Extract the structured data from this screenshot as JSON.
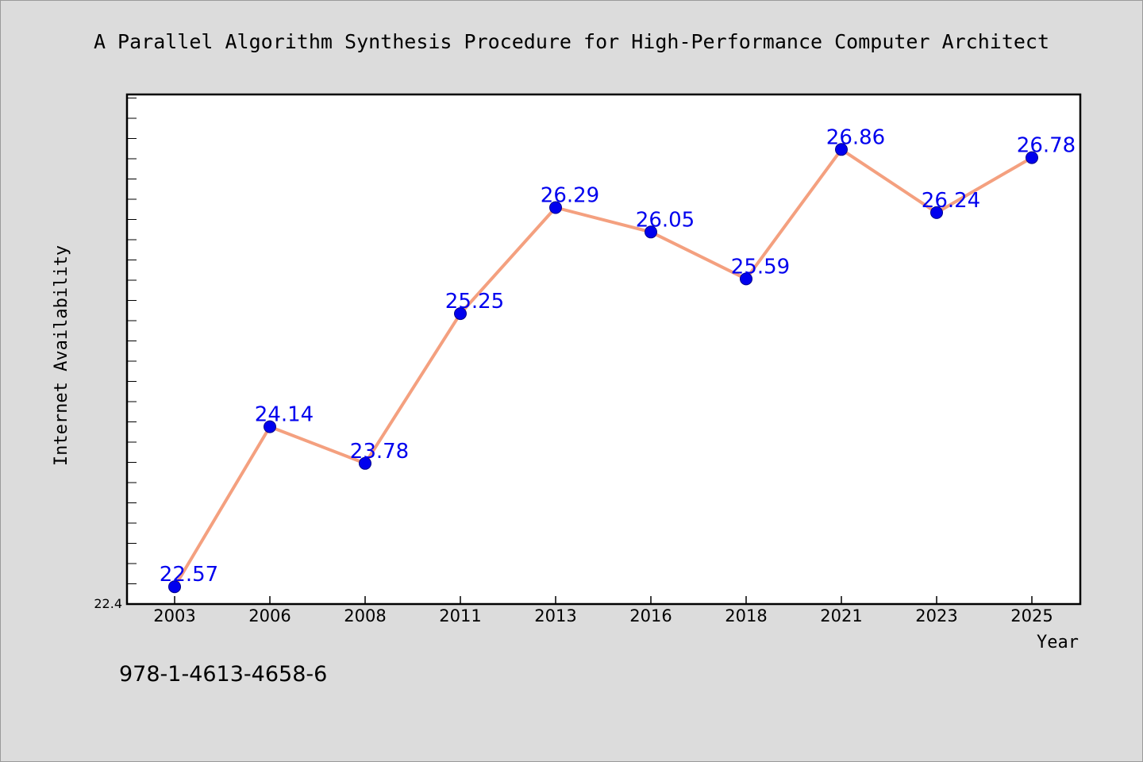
{
  "isbn": "978-1-4613-4658-6",
  "chart_data": {
    "type": "line",
    "title": "A Parallel Algorithm Synthesis Procedure for High-Performance Computer Architect",
    "xlabel": "Year",
    "ylabel": "Internet Availability",
    "categories": [
      "2003",
      "2006",
      "2008",
      "2011",
      "2013",
      "2016",
      "2018",
      "2021",
      "2023",
      "2025"
    ],
    "series": [
      {
        "values": [
          22.57,
          24.14,
          23.78,
          25.25,
          26.29,
          26.05,
          25.59,
          26.86,
          26.24,
          26.78
        ],
        "line_color": "#f4a07f",
        "marker_color": "#0000ee",
        "label_color": "#0000ee"
      }
    ],
    "data_labels": [
      "22.57",
      "24.14",
      "23.78",
      "25.25",
      "26.29",
      "26.05",
      "25.59",
      "26.86",
      "26.24",
      "26.78"
    ],
    "y_tick_labels": [
      "22.4"
    ],
    "ylim": [
      22.4,
      27.4
    ],
    "grid": false,
    "legend": "none",
    "plot_background": "#ffffff",
    "page_background": "#dcdcdc"
  }
}
